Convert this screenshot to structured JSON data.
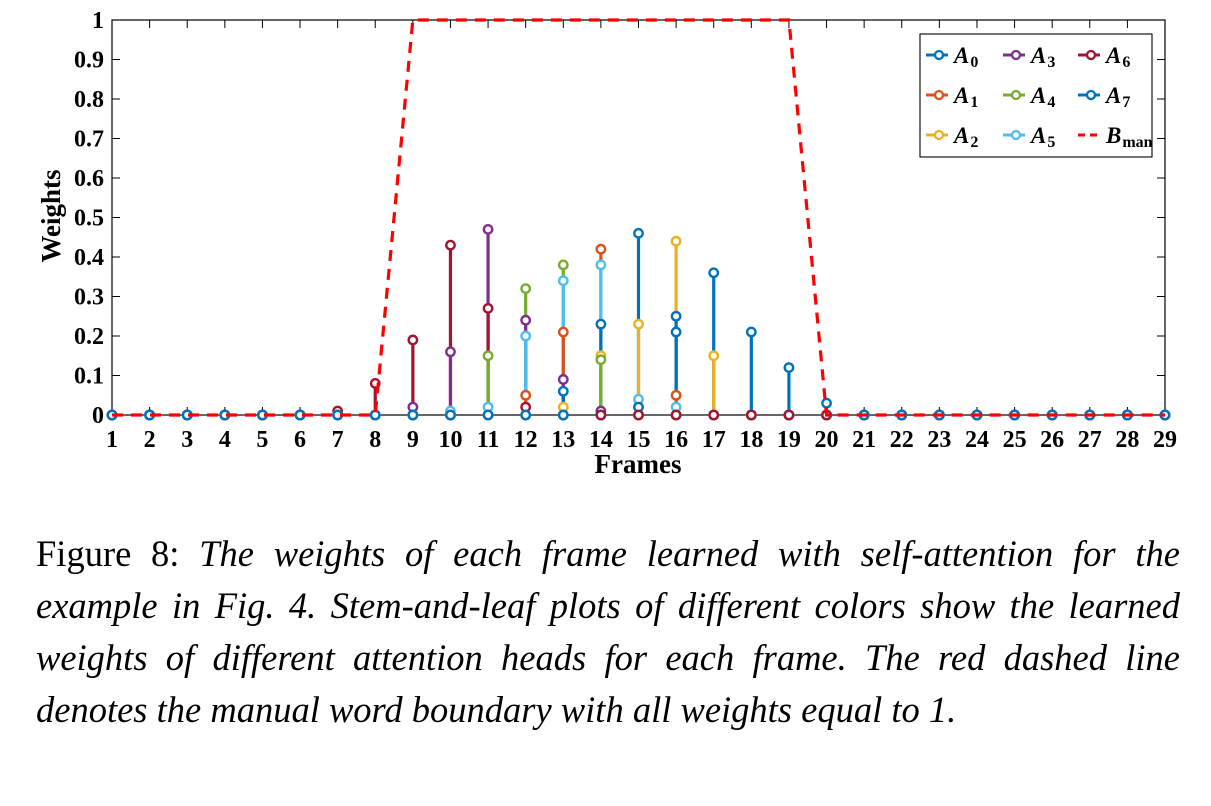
{
  "chart_data": {
    "type": "stem",
    "xlabel": "Frames",
    "ylabel": "Weights",
    "xlim": [
      1,
      29
    ],
    "ylim": [
      0,
      1
    ],
    "x_ticks": [
      1,
      2,
      3,
      4,
      5,
      6,
      7,
      8,
      9,
      10,
      11,
      12,
      13,
      14,
      15,
      16,
      17,
      18,
      19,
      20,
      21,
      22,
      23,
      24,
      25,
      26,
      27,
      28,
      29
    ],
    "y_ticks": [
      {
        "value": 0,
        "label": "0"
      },
      {
        "value": 0.1,
        "label": "0.1"
      },
      {
        "value": 0.2,
        "label": "0.2"
      },
      {
        "value": 0.3,
        "label": "0.3"
      },
      {
        "value": 0.4,
        "label": "0.4"
      },
      {
        "value": 0.5,
        "label": "0.5"
      },
      {
        "value": 0.6,
        "label": "0.6"
      },
      {
        "value": 0.7,
        "label": "0.7"
      },
      {
        "value": 0.8,
        "label": "0.8"
      },
      {
        "value": 0.9,
        "label": "0.9"
      },
      {
        "value": 1,
        "label": "1"
      }
    ],
    "legend_position": "top-right",
    "grid": false,
    "series": [
      {
        "name": "A",
        "sub": "0",
        "color": "#0072BD",
        "style": "stem",
        "values": [
          0,
          0,
          0,
          0,
          0,
          0,
          0,
          0,
          0,
          0,
          0,
          0,
          0.06,
          0,
          0.46,
          0.25,
          0,
          0,
          0,
          0,
          0,
          0,
          0,
          0,
          0,
          0,
          0,
          0,
          0
        ]
      },
      {
        "name": "A",
        "sub": "1",
        "color": "#D95319",
        "style": "stem",
        "values": [
          0,
          0,
          0,
          0,
          0,
          0,
          0,
          0,
          0,
          0,
          0,
          0.05,
          0.21,
          0.42,
          0.02,
          0.05,
          0,
          0,
          0,
          0,
          0,
          0,
          0,
          0,
          0,
          0,
          0,
          0,
          0
        ]
      },
      {
        "name": "A",
        "sub": "2",
        "color": "#EDB120",
        "style": "stem",
        "values": [
          0,
          0,
          0,
          0,
          0,
          0,
          0,
          0,
          0,
          0,
          0,
          0,
          0.02,
          0.15,
          0.23,
          0.44,
          0.15,
          0,
          0,
          0,
          0,
          0,
          0,
          0,
          0,
          0,
          0,
          0,
          0
        ]
      },
      {
        "name": "A",
        "sub": "3",
        "color": "#7E2F8E",
        "style": "stem",
        "values": [
          0,
          0,
          0,
          0,
          0,
          0,
          0,
          0,
          0.02,
          0.16,
          0.47,
          0.24,
          0.09,
          0.01,
          0,
          0,
          0,
          0,
          0,
          0,
          0,
          0,
          0,
          0,
          0,
          0,
          0,
          0,
          0
        ]
      },
      {
        "name": "A",
        "sub": "4",
        "color": "#77AC30",
        "style": "stem",
        "values": [
          0,
          0,
          0,
          0,
          0,
          0,
          0,
          0,
          0,
          0,
          0.15,
          0.32,
          0.38,
          0.14,
          0,
          0,
          0,
          0,
          0,
          0,
          0,
          0,
          0,
          0,
          0,
          0,
          0,
          0,
          0
        ]
      },
      {
        "name": "A",
        "sub": "5",
        "color": "#4DBEEE",
        "style": "stem",
        "values": [
          0,
          0,
          0,
          0,
          0,
          0,
          0,
          0,
          0,
          0.01,
          0.02,
          0.2,
          0.34,
          0.38,
          0.04,
          0.02,
          0,
          0,
          0,
          0,
          0,
          0,
          0,
          0,
          0,
          0,
          0,
          0,
          0
        ]
      },
      {
        "name": "A",
        "sub": "6",
        "color": "#A2142F",
        "style": "stem",
        "values": [
          0,
          0,
          0,
          0,
          0,
          0,
          0.01,
          0.08,
          0.19,
          0.43,
          0.27,
          0.02,
          0,
          0,
          0,
          0,
          0,
          0,
          0,
          0,
          0,
          0,
          0,
          0,
          0,
          0,
          0,
          0,
          0
        ]
      },
      {
        "name": "A",
        "sub": "7",
        "color": "#0072BD",
        "style": "stem",
        "values": [
          0,
          0,
          0,
          0,
          0,
          0,
          0,
          0,
          0,
          0,
          0,
          0,
          0,
          0.23,
          0.02,
          0.21,
          0.36,
          0.21,
          0.12,
          0.03,
          0,
          0,
          0,
          0,
          0,
          0,
          0,
          0,
          0
        ]
      },
      {
        "name": "B",
        "sub": "man",
        "color": "#FF0000",
        "style": "dashed-line",
        "values": [
          0,
          0,
          0,
          0,
          0,
          0,
          0,
          0,
          1,
          1,
          1,
          1,
          1,
          1,
          1,
          1,
          1,
          1,
          1,
          0,
          0,
          0,
          0,
          0,
          0,
          0,
          0,
          0,
          0
        ]
      }
    ]
  },
  "caption": {
    "label": "Figure 8:",
    "body": "The weights of each frame learned with self-attention for the example in Fig. 4. Stem-and-leaf plots of different colors show the learned weights of different attention heads for each frame. The red dashed line denotes the manual word boundary with all weights equal to 1."
  }
}
